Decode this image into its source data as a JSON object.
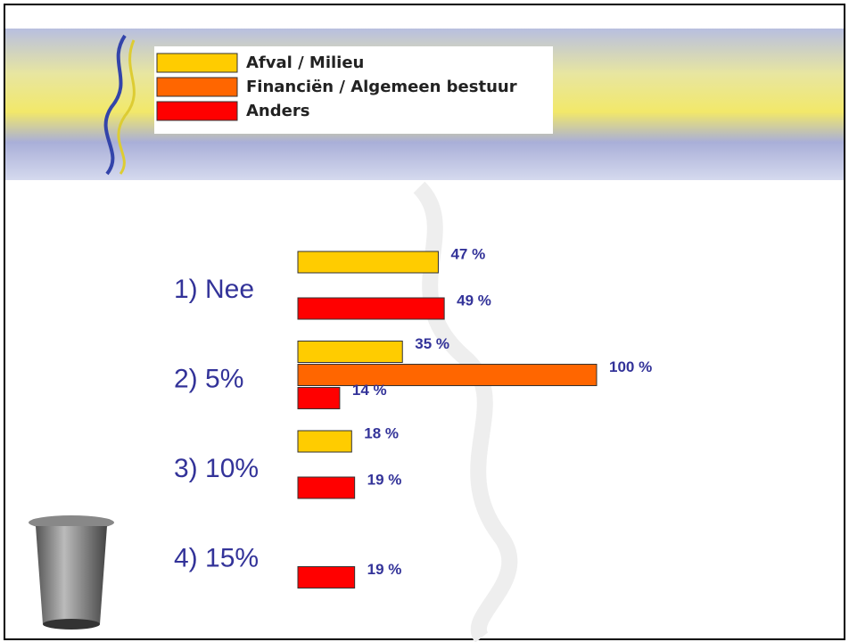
{
  "chart_data": {
    "type": "bar",
    "orientation": "horizontal",
    "categories": [
      "1) Nee",
      "2) 5%",
      "3) 10%",
      "4) 15%"
    ],
    "series": [
      {
        "name": "Afval / Milieu",
        "color": "#ffcc00",
        "values": [
          47,
          35,
          18,
          null
        ],
        "value_labels": [
          "47 %",
          "35 %",
          "18 %",
          null
        ]
      },
      {
        "name": "Financiën / Algemeen bestuur",
        "color": "#ff6600",
        "values": [
          null,
          100,
          null,
          null
        ],
        "value_labels": [
          null,
          "100 %",
          null,
          null
        ]
      },
      {
        "name": "Anders",
        "color": "#ff0000",
        "values": [
          49,
          14,
          19,
          19
        ],
        "value_labels": [
          "49 %",
          "14 %",
          "19 %",
          "19 %"
        ]
      }
    ]
  }
}
